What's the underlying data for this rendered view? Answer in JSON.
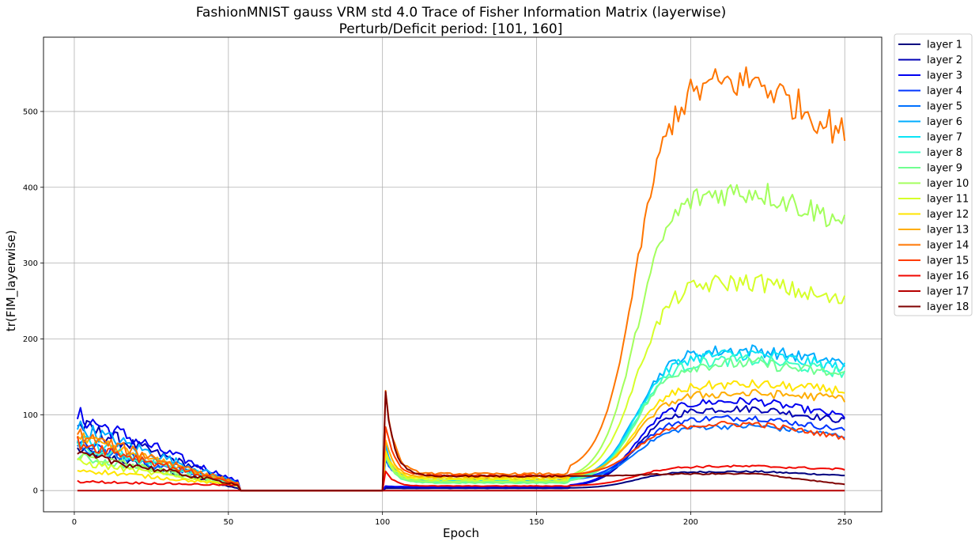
{
  "chart_data": {
    "type": "line",
    "title": "FashionMNIST gauss VRM std 4.0 Trace of Fisher Information Matrix (layerwise)",
    "subtitle": "Perturb/Deficit period: [101, 160]",
    "xlabel": "Epoch",
    "ylabel": "tr(FIM_layerwise)",
    "xlim": [
      -10,
      262
    ],
    "ylim": [
      -28,
      598
    ],
    "xticks": [
      0,
      50,
      100,
      150,
      200,
      250
    ],
    "yticks": [
      0,
      100,
      200,
      300,
      400,
      500
    ],
    "grid": true,
    "legend_position": "outside-right",
    "x_range": [
      1,
      250
    ],
    "perturb_period": [
      101,
      160
    ],
    "series": [
      {
        "name": "layer 1",
        "color": "#00007f",
        "start": 55,
        "decay": 3,
        "perturb_peak": 3,
        "plateau": 3,
        "final_peak": 25,
        "final_end": 20
      },
      {
        "name": "layer 2",
        "color": "#0000b6",
        "start": 88,
        "decay": 10,
        "perturb_peak": 5,
        "plateau": 4,
        "final_peak": 108,
        "final_end": 92
      },
      {
        "name": "layer 3",
        "color": "#0000f1",
        "start": 100,
        "decay": 12,
        "perturb_peak": 6,
        "plateau": 5,
        "final_peak": 118,
        "final_end": 98
      },
      {
        "name": "layer 4",
        "color": "#0034ff",
        "start": 62,
        "decay": 9,
        "perturb_peak": 40,
        "plateau": 14,
        "final_peak": 96,
        "final_end": 80
      },
      {
        "name": "layer 5",
        "color": "#0070ff",
        "start": 58,
        "decay": 8,
        "perturb_peak": 42,
        "plateau": 13,
        "final_peak": 85,
        "final_end": 72
      },
      {
        "name": "layer 6",
        "color": "#00acff",
        "start": 85,
        "decay": 10,
        "perturb_peak": 60,
        "plateau": 13,
        "final_peak": 185,
        "final_end": 168
      },
      {
        "name": "layer 7",
        "color": "#0ae4f6",
        "start": 68,
        "decay": 9,
        "perturb_peak": 55,
        "plateau": 12,
        "final_peak": 180,
        "final_end": 162
      },
      {
        "name": "layer 8",
        "color": "#3dffc3",
        "start": 60,
        "decay": 8,
        "perturb_peak": 50,
        "plateau": 11,
        "final_peak": 172,
        "final_end": 155
      },
      {
        "name": "layer 9",
        "color": "#70ff90",
        "start": 45,
        "decay": 7,
        "perturb_peak": 45,
        "plateau": 10,
        "final_peak": 168,
        "final_end": 152
      },
      {
        "name": "layer 10",
        "color": "#a3ff5c",
        "start": 48,
        "decay": 7,
        "perturb_peak": 48,
        "plateau": 12,
        "final_peak": 395,
        "final_end": 355
      },
      {
        "name": "layer 11",
        "color": "#d6ff29",
        "start": 38,
        "decay": 7,
        "perturb_peak": 52,
        "plateau": 14,
        "final_peak": 275,
        "final_end": 248
      },
      {
        "name": "layer 12",
        "color": "#ffe500",
        "start": 28,
        "decay": 7,
        "perturb_peak": 55,
        "plateau": 16,
        "final_peak": 140,
        "final_end": 132
      },
      {
        "name": "layer 13",
        "color": "#ffad00",
        "start": 70,
        "decay": 9,
        "perturb_peak": 70,
        "plateau": 18,
        "final_peak": 128,
        "final_end": 122
      },
      {
        "name": "layer 14",
        "color": "#ff7500",
        "start": 75,
        "decay": 10,
        "perturb_peak": 130,
        "plateau": 22,
        "final_peak": 540,
        "final_end": 470
      },
      {
        "name": "layer 15",
        "color": "#ff3c00",
        "start": 65,
        "decay": 8,
        "perturb_peak": 85,
        "plateau": 20,
        "final_peak": 88,
        "final_end": 70
      },
      {
        "name": "layer 16",
        "color": "#f10700",
        "start": 12,
        "decay": 7,
        "perturb_peak": 25,
        "plateau": 6,
        "final_peak": 32,
        "final_end": 28
      },
      {
        "name": "layer 17",
        "color": "#b60000",
        "start": 0,
        "decay": 0,
        "perturb_peak": 0,
        "plateau": 0,
        "final_peak": 0,
        "final_end": 0
      },
      {
        "name": "layer 18",
        "color": "#7f0000",
        "start": 48,
        "decay": 8,
        "perturb_peak": 128,
        "plateau": 19,
        "final_peak": 22,
        "final_end": 8
      }
    ]
  }
}
